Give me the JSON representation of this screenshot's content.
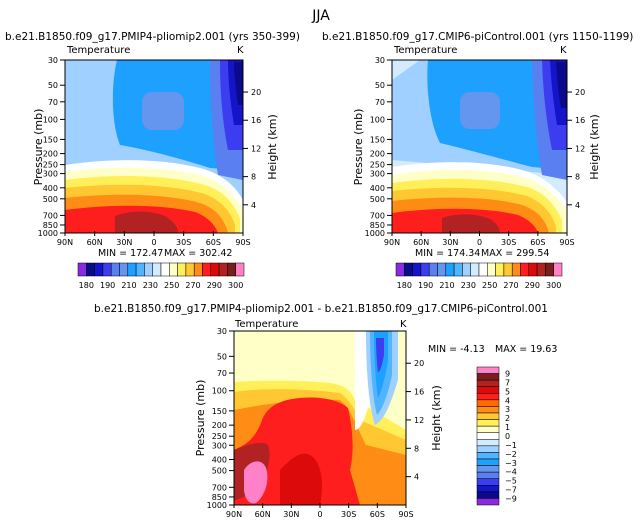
{
  "page": {
    "title": "JJA"
  },
  "colors": {
    "purple": "#8a2be2",
    "navy": "#0a0a8a",
    "blue_dark": "#1414c8",
    "blue": "#3c3cf0",
    "slate_blue": "#5a7ff0",
    "cornflower": "#6496f0",
    "deep_sky": "#1ea0ff",
    "sky": "#50b4ff",
    "light_sky": "#9fd0ff",
    "pale_sky": "#d2ebff",
    "white": "#ffffff",
    "cream": "#ffffc8",
    "yellow": "#fff05a",
    "gold": "#ffc832",
    "orange": "#ff8c14",
    "dark_orange": "#ff6a00",
    "red": "#ff1e1e",
    "crimson": "#dc0a0a",
    "brick": "#b22222",
    "maroon": "#781e1e",
    "pink": "#ff82c8"
  },
  "chart_data": [
    {
      "type": "heatmap",
      "title": "b.e21.B1850.f09_g17.PMIP4-pliomip2.001 (yrs 350-399)",
      "subtitle": "Temperature",
      "units": "K",
      "xlabel": "",
      "ylabel": "Pressure (mb)",
      "ylabel_right": "Height (km)",
      "x_ticks": [
        "90N",
        "60N",
        "30N",
        "0",
        "30S",
        "60S",
        "90S"
      ],
      "y_ticks": [
        "30",
        "50",
        "70",
        "100",
        "150",
        "200",
        "250",
        "300",
        "400",
        "500",
        "700",
        "850",
        "1000"
      ],
      "y_right_ticks": [
        "20",
        "16",
        "12",
        "8",
        "4"
      ],
      "min_label": "MIN = 172.47",
      "max_label": "MAX = 302.42",
      "contour_levels": [
        180,
        190,
        200,
        210,
        220,
        230,
        240,
        250,
        260,
        270,
        280,
        290,
        300
      ],
      "colorbar_labels": [
        "180",
        "190",
        "210",
        "230",
        "250",
        "270",
        "290",
        "300"
      ]
    },
    {
      "type": "heatmap",
      "title": "b.e21.B1850.f09_g17.CMIP6-piControl.001 (yrs 1150-1199)",
      "subtitle": "Temperature",
      "units": "K",
      "xlabel": "",
      "ylabel": "Pressure (mb)",
      "ylabel_right": "Height (km)",
      "x_ticks": [
        "90N",
        "60N",
        "30N",
        "0",
        "30S",
        "60S",
        "90S"
      ],
      "y_ticks": [
        "30",
        "50",
        "70",
        "100",
        "150",
        "200",
        "250",
        "300",
        "400",
        "500",
        "700",
        "850",
        "1000"
      ],
      "y_right_ticks": [
        "20",
        "16",
        "12",
        "8",
        "4"
      ],
      "min_label": "MIN = 174.34",
      "max_label": "MAX = 299.54",
      "contour_levels": [
        180,
        190,
        200,
        210,
        220,
        230,
        240,
        250,
        260,
        270,
        280,
        290,
        300
      ],
      "colorbar_labels": [
        "180",
        "190",
        "210",
        "230",
        "250",
        "270",
        "290",
        "300"
      ]
    },
    {
      "type": "heatmap",
      "title": "b.e21.B1850.f09_g17.PMIP4-pliomip2.001 - b.e21.B1850.f09_g17.CMIP6-piControl.001",
      "subtitle": "Temperature",
      "units": "K",
      "xlabel": "",
      "ylabel": "Pressure (mb)",
      "ylabel_right": "Height (km)",
      "x_ticks": [
        "90N",
        "60N",
        "30N",
        "0",
        "30S",
        "60S",
        "90S"
      ],
      "y_ticks": [
        "30",
        "50",
        "70",
        "100",
        "150",
        "200",
        "250",
        "300",
        "400",
        "500",
        "700",
        "850",
        "1000"
      ],
      "y_right_ticks": [
        "20",
        "16",
        "12",
        "8",
        "4"
      ],
      "min_label": "MIN = -4.13",
      "max_label": "MAX = 19.63",
      "contour_levels": [
        -9,
        -7,
        -5,
        -4,
        -3,
        -2,
        -1,
        0,
        1,
        2,
        3,
        4,
        5,
        7,
        9
      ],
      "colorbar_labels": [
        "9",
        "7",
        "5",
        "4",
        "3",
        "2",
        "1",
        "0",
        "−1",
        "−2",
        "−3",
        "−4",
        "−5",
        "−7",
        "−9"
      ]
    }
  ]
}
